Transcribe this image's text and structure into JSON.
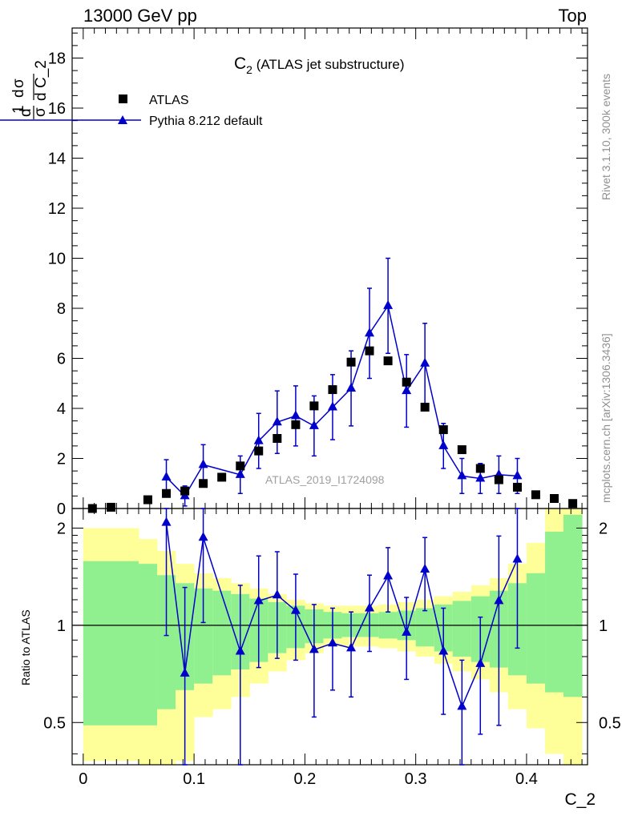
{
  "header": {
    "left": "13000 GeV pp",
    "right": "Top"
  },
  "side_labels": {
    "rivet": "Rivet 3.1.10,  300k events",
    "mcplots": "mcplots.cern.ch [arXiv:1306.3436]"
  },
  "watermark": "ATLAS_2019_I1724098",
  "colors": {
    "data": "#000000",
    "mc": "#0000cc",
    "band_yellow": "#ffff99",
    "band_green": "#90f090"
  },
  "chart_data": [
    {
      "type": "scatter",
      "title_main": "C",
      "title_sub": "2",
      "title_rest": " (ATLAS jet substructure)",
      "ylabel": "dσ/dC_2 · 1/σ",
      "xlabel": "C_2",
      "xlim": [
        -0.01,
        0.455
      ],
      "ylim": [
        0,
        19.2
      ],
      "yticks": [
        0,
        2,
        4,
        6,
        8,
        10,
        12,
        14,
        16,
        18
      ],
      "ytick_labels": [
        "0",
        "2",
        "4",
        "6",
        "8",
        "10",
        "12",
        "14",
        "16",
        "18"
      ],
      "legend": {
        "data_label": "ATLAS",
        "mc_label": "Pythia 8.212 default",
        "position": "top-left"
      },
      "series": [
        {
          "name": "ATLAS",
          "x": [
            0.0083,
            0.025,
            0.0583,
            0.075,
            0.0917,
            0.1083,
            0.125,
            0.1417,
            0.1583,
            0.175,
            0.1917,
            0.2083,
            0.225,
            0.2417,
            0.2583,
            0.275,
            0.2917,
            0.3083,
            0.325,
            0.3417,
            0.3583,
            0.375,
            0.3917,
            0.4083,
            0.425,
            0.4417
          ],
          "y": [
            0.0,
            0.05,
            0.35,
            0.6,
            0.7,
            1.0,
            1.25,
            1.7,
            2.3,
            2.8,
            3.35,
            4.1,
            4.75,
            5.85,
            6.3,
            5.9,
            5.05,
            4.05,
            3.15,
            2.35,
            1.6,
            1.15,
            0.85,
            0.55,
            0.4,
            0.2
          ]
        },
        {
          "name": "Pythia 8.212 default",
          "x": [
            0.075,
            0.0917,
            0.1083,
            0.1417,
            0.1583,
            0.175,
            0.1917,
            0.2083,
            0.225,
            0.2417,
            0.2583,
            0.275,
            0.2917,
            0.3083,
            0.325,
            0.3417,
            0.3583,
            0.375,
            0.3917
          ],
          "y": [
            1.25,
            0.5,
            1.75,
            1.35,
            2.7,
            3.45,
            3.7,
            3.3,
            4.05,
            4.8,
            7.0,
            8.1,
            4.7,
            5.8,
            2.5,
            1.3,
            1.2,
            1.35,
            1.3
          ],
          "err": [
            0.7,
            0.4,
            0.8,
            0.75,
            1.1,
            1.25,
            1.2,
            1.2,
            1.3,
            1.5,
            1.8,
            1.9,
            1.45,
            1.6,
            0.9,
            0.7,
            0.6,
            0.75,
            0.7
          ]
        }
      ]
    },
    {
      "type": "line",
      "ylabel": "Ratio to ATLAS",
      "xlim": [
        -0.01,
        0.455
      ],
      "ylim": [
        0.37,
        2.3
      ],
      "yscale": "log",
      "yticks": [
        0.5,
        1,
        2
      ],
      "ytick_labels": [
        "0.5",
        "1",
        "2"
      ],
      "xticks": [
        0,
        0.1,
        0.2,
        0.3,
        0.4
      ],
      "xtick_labels": [
        "0",
        "0.1",
        "0.2",
        "0.3",
        "0.4"
      ],
      "reference": 1,
      "bands": {
        "edges": [
          0.0,
          0.05,
          0.0667,
          0.0833,
          0.1,
          0.1167,
          0.1333,
          0.15,
          0.1667,
          0.1833,
          0.2,
          0.2167,
          0.2333,
          0.25,
          0.2667,
          0.2833,
          0.3,
          0.3167,
          0.3333,
          0.35,
          0.3667,
          0.3833,
          0.4,
          0.4167,
          0.4333,
          0.45
        ],
        "yellow_lo": [
          0.38,
          0.3,
          0.3,
          0.38,
          0.52,
          0.55,
          0.6,
          0.66,
          0.72,
          0.78,
          0.82,
          0.86,
          0.86,
          0.86,
          0.85,
          0.83,
          0.8,
          0.76,
          0.72,
          0.68,
          0.62,
          0.55,
          0.48,
          0.4,
          0.35
        ],
        "yellow_hi": [
          2.0,
          1.85,
          1.7,
          1.55,
          1.45,
          1.4,
          1.35,
          1.3,
          1.25,
          1.2,
          1.17,
          1.15,
          1.15,
          1.15,
          1.16,
          1.18,
          1.2,
          1.23,
          1.27,
          1.33,
          1.4,
          1.55,
          1.8,
          2.4,
          2.4
        ],
        "green_lo": [
          0.49,
          0.49,
          0.55,
          0.63,
          0.66,
          0.7,
          0.73,
          0.77,
          0.82,
          0.85,
          0.88,
          0.91,
          0.92,
          0.92,
          0.91,
          0.9,
          0.86,
          0.83,
          0.8,
          0.77,
          0.74,
          0.7,
          0.66,
          0.62,
          0.6
        ],
        "green_hi": [
          1.58,
          1.55,
          1.43,
          1.35,
          1.3,
          1.28,
          1.25,
          1.21,
          1.18,
          1.15,
          1.12,
          1.1,
          1.09,
          1.09,
          1.1,
          1.11,
          1.13,
          1.16,
          1.19,
          1.23,
          1.28,
          1.35,
          1.45,
          1.95,
          2.2
        ]
      },
      "series": [
        {
          "name": "Pythia 8.212 default / ATLAS",
          "x": [
            0.075,
            0.0917,
            0.1083,
            0.1417,
            0.1583,
            0.175,
            0.1917,
            0.2083,
            0.225,
            0.2417,
            0.2583,
            0.275,
            0.2917,
            0.3083,
            0.325,
            0.3417,
            0.3583,
            0.375,
            0.3917
          ],
          "y": [
            2.08,
            0.71,
            1.87,
            0.83,
            1.19,
            1.24,
            1.11,
            0.84,
            0.88,
            0.85,
            1.13,
            1.42,
            0.95,
            1.49,
            0.83,
            0.56,
            0.76,
            1.19,
            1.6
          ],
          "err": [
            1.15,
            0.6,
            0.85,
            0.5,
            0.45,
            0.45,
            0.33,
            0.32,
            0.25,
            0.25,
            0.3,
            0.32,
            0.27,
            0.38,
            0.3,
            0.22,
            0.3,
            0.7,
            0.75
          ]
        }
      ]
    }
  ]
}
